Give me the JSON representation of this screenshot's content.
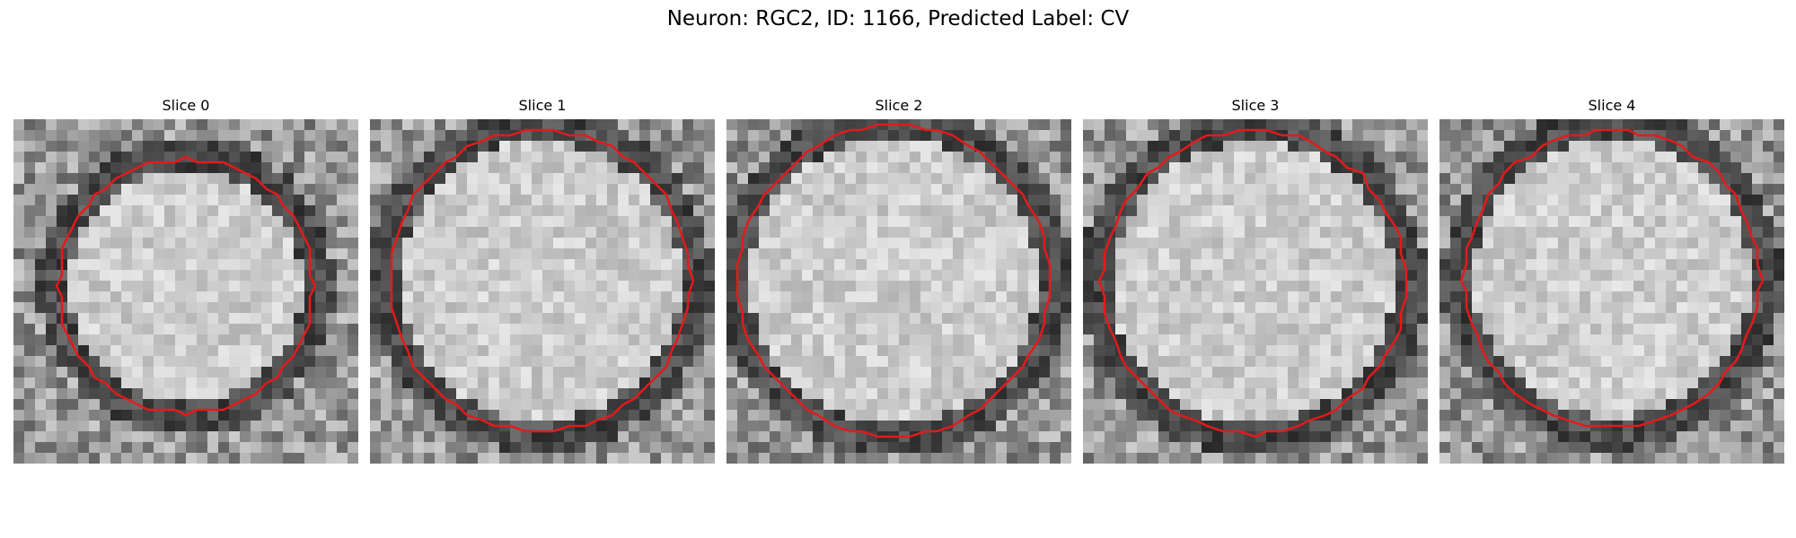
{
  "figure": {
    "title": "Neuron: RGC2, ID: 1166, Predicted Label: CV"
  },
  "panels": [
    {
      "title": "Slice 0"
    },
    {
      "title": "Slice 1"
    },
    {
      "title": "Slice 2"
    },
    {
      "title": "Slice 3"
    },
    {
      "title": "Slice 4"
    }
  ],
  "colors": {
    "contour": "#e41a1c",
    "background": "#ffffff"
  }
}
